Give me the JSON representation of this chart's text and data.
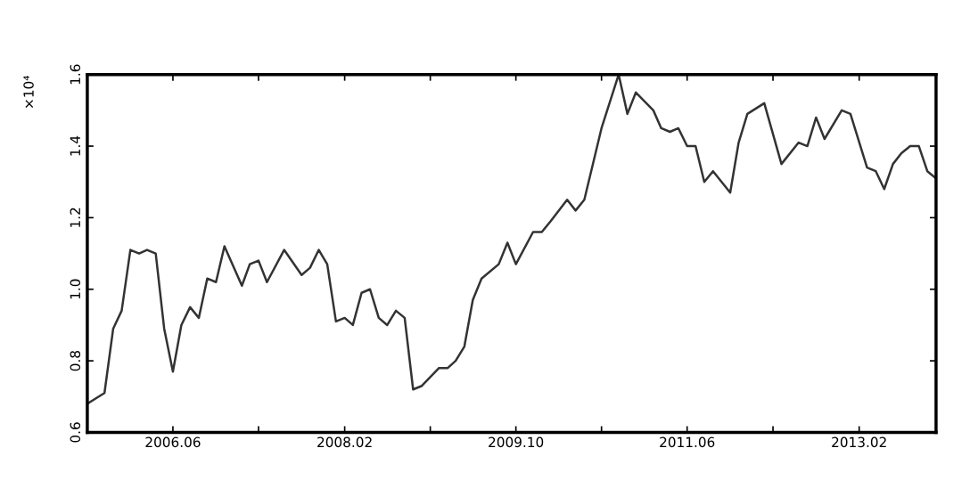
{
  "chart_data": {
    "type": "line",
    "ylabel": "×10⁴",
    "x": [
      "2005-08",
      "2005-10",
      "2005-11",
      "2005-12",
      "2006-01",
      "2006-02",
      "2006-03",
      "2006-04",
      "2006-05",
      "2006-06",
      "2006-07",
      "2006-08",
      "2006-09",
      "2006-10",
      "2006-11",
      "2006-12",
      "2007-02",
      "2007-03",
      "2007-04",
      "2007-05",
      "2007-07",
      "2007-09",
      "2007-10",
      "2007-11",
      "2007-12",
      "2008-01",
      "2008-02",
      "2008-03",
      "2008-04",
      "2008-05",
      "2008-06",
      "2008-07",
      "2008-08",
      "2008-09",
      "2008-10",
      "2008-11",
      "2009-01",
      "2009-02",
      "2009-03",
      "2009-04",
      "2009-05",
      "2009-06",
      "2009-08",
      "2009-09",
      "2009-10",
      "2009-12",
      "2010-01",
      "2010-02",
      "2010-04",
      "2010-05",
      "2010-06",
      "2010-08",
      "2010-10",
      "2010-11",
      "2010-12",
      "2011-02",
      "2011-03",
      "2011-04",
      "2011-05",
      "2011-06",
      "2011-07",
      "2011-08",
      "2011-09",
      "2011-11",
      "2011-12",
      "2012-01",
      "2012-03",
      "2012-05",
      "2012-07",
      "2012-08",
      "2012-09",
      "2012-10",
      "2012-12",
      "2013-01",
      "2013-03",
      "2013-04",
      "2013-05",
      "2013-06",
      "2013-07",
      "2013-08",
      "2013-09",
      "2013-10",
      "2013-11"
    ],
    "series": [
      {
        "color": "#333333",
        "values": [
          0.68,
          0.71,
          0.89,
          0.94,
          1.11,
          1.1,
          1.11,
          1.1,
          0.89,
          0.77,
          0.9,
          0.95,
          0.92,
          1.03,
          1.02,
          1.12,
          1.01,
          1.07,
          1.08,
          1.02,
          1.11,
          1.04,
          1.06,
          1.11,
          1.07,
          0.91,
          0.92,
          0.9,
          0.99,
          1.0,
          0.92,
          0.9,
          0.94,
          0.92,
          0.72,
          0.73,
          0.78,
          0.78,
          0.8,
          0.84,
          0.97,
          1.03,
          1.07,
          1.13,
          1.07,
          1.16,
          1.16,
          1.19,
          1.25,
          1.22,
          1.25,
          1.45,
          1.6,
          1.49,
          1.55,
          1.5,
          1.45,
          1.44,
          1.45,
          1.4,
          1.4,
          1.3,
          1.33,
          1.27,
          1.41,
          1.49,
          1.52,
          1.35,
          1.41,
          1.4,
          1.48,
          1.42,
          1.5,
          1.49,
          1.34,
          1.33,
          1.28,
          1.35,
          1.38,
          1.4,
          1.4,
          1.33,
          1.31
        ]
      }
    ],
    "xlim": [
      "2005-08",
      "2013-11"
    ],
    "xticks": [
      {
        "value": "2006-06",
        "label": "2006.06"
      },
      {
        "value": "2007-04",
        "label": null
      },
      {
        "value": "2008-02",
        "label": "2008.02"
      },
      {
        "value": "2008-12",
        "label": null
      },
      {
        "value": "2009-10",
        "label": "2009.10"
      },
      {
        "value": "2010-08",
        "label": null
      },
      {
        "value": "2011-06",
        "label": "2011.06"
      },
      {
        "value": "2012-04",
        "label": null
      },
      {
        "value": "2013-02",
        "label": "2013.02"
      }
    ],
    "ylim": [
      0.6,
      1.6
    ],
    "yticks": [
      0.6,
      0.8,
      {
        "value": 1,
        "label": "1.0"
      },
      1.2,
      1.4,
      1.6
    ],
    "grid": false,
    "legend": false,
    "marker": "none",
    "line_style": "solid"
  }
}
